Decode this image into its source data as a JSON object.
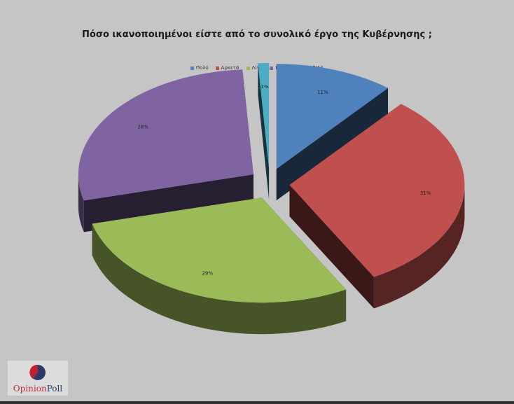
{
  "chart_data": {
    "type": "pie",
    "title": "Πόσο ικανοποιημένοι είστε από το συνολικό έργο της Κυβέρνησης ;",
    "legend_position": "top",
    "style": "3d-exploded",
    "slices": [
      {
        "label": "Πολύ",
        "value": 11,
        "data_label": "11%",
        "color": "#4f81bd"
      },
      {
        "label": "Αρκετά",
        "value": 31,
        "data_label": "31%",
        "color": "#c0504d"
      },
      {
        "label": "Λίγο",
        "value": 29,
        "data_label": "29%",
        "color": "#9bbb59"
      },
      {
        "label": "Καθόλου",
        "value": 28,
        "data_label": "28%",
        "color": "#8064a2"
      },
      {
        "label": "ΔΓ/ΔΑ",
        "value": 1,
        "data_label": "1%",
        "color": "#4bacc6"
      }
    ]
  },
  "logo": {
    "text_a": "Opinion",
    "text_b": "Poll"
  }
}
